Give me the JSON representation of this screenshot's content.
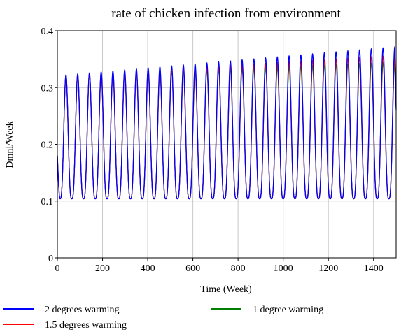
{
  "chart_data": {
    "type": "line",
    "title": "rate of chicken infection from environment",
    "xlabel": "Time (Week)",
    "ylabel": "Dmnl/Week",
    "xlim": [
      0,
      1500
    ],
    "ylim": [
      0,
      0.4
    ],
    "x_ticks": [
      0,
      200,
      400,
      600,
      800,
      1000,
      1200,
      1400
    ],
    "x_tick_labels": [
      "0",
      "200",
      "400",
      "600",
      "800",
      "1000",
      "1200",
      "1400"
    ],
    "y_ticks": [
      0,
      0.1,
      0.2,
      0.3,
      0.4
    ],
    "y_tick_labels": [
      "0",
      "0.1",
      "0.2",
      "0.3",
      "0.4"
    ],
    "grid": true,
    "legend_position": "bottom",
    "period_weeks": 52,
    "first_peak_week": 38,
    "trough_value": 0.104,
    "start_value": 0.18,
    "end_values": {
      "2 degrees warming": 0.26,
      "1.5 degrees warming": 0.265,
      "1 degree warming": 0.27
    },
    "series": [
      {
        "name": "2 degrees warming",
        "color": "#0000ff",
        "peak_start": 0.321,
        "peak_end": 0.372
      },
      {
        "name": "1.5 degrees warming",
        "color": "#ff0000",
        "peak_start": 0.32,
        "peak_end": 0.357
      },
      {
        "name": "1 degree warming",
        "color": "#008000",
        "peak_start": 0.32,
        "peak_end": 0.345
      }
    ]
  }
}
